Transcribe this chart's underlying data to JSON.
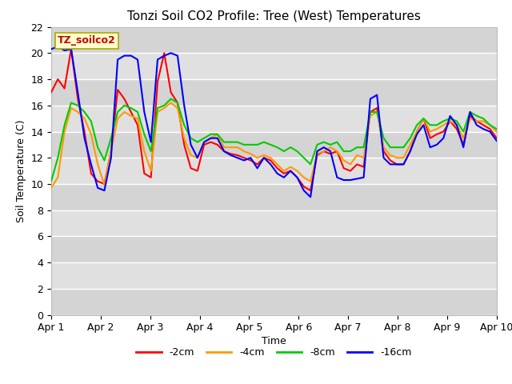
{
  "title": "Tonzi Soil CO2 Profile: Tree (West) Temperatures",
  "xlabel": "Time",
  "ylabel": "Soil Temperature (C)",
  "watermark": "TZ_soilco2",
  "xlim": [
    0,
    9
  ],
  "ylim": [
    0,
    22
  ],
  "yticks": [
    0,
    2,
    4,
    6,
    8,
    10,
    12,
    14,
    16,
    18,
    20,
    22
  ],
  "xtick_labels": [
    "Apr 1",
    "Apr 2",
    "Apr 3",
    "Apr 4",
    "Apr 5",
    "Apr 6",
    "Apr 7",
    "Apr 8",
    "Apr 9",
    "Apr 10"
  ],
  "line_colors": [
    "#ff0000",
    "#ff9900",
    "#00cc00",
    "#0000ff"
  ],
  "line_labels": [
    "-2cm",
    "-4cm",
    "-8cm",
    "-16cm"
  ],
  "band_colors": [
    "#d4d4d4",
    "#e0e0e0"
  ],
  "series": {
    "red": [
      17.0,
      18.0,
      17.3,
      20.3,
      16.5,
      14.0,
      10.8,
      10.2,
      10.0,
      12.5,
      17.2,
      16.5,
      15.5,
      14.5,
      10.8,
      10.5,
      17.8,
      20.0,
      17.0,
      16.2,
      13.0,
      11.2,
      11.0,
      13.0,
      13.2,
      13.0,
      12.5,
      12.3,
      12.2,
      12.0,
      11.8,
      11.5,
      12.0,
      11.8,
      11.2,
      10.8,
      11.0,
      10.5,
      9.8,
      9.5,
      12.2,
      12.5,
      12.3,
      12.5,
      11.2,
      11.0,
      11.5,
      11.3,
      15.5,
      15.8,
      12.5,
      11.8,
      11.5,
      11.5,
      12.5,
      14.0,
      15.0,
      13.5,
      13.8,
      14.0,
      14.8,
      14.2,
      13.0,
      15.2,
      14.8,
      14.5,
      14.2,
      13.5
    ],
    "orange": [
      9.7,
      10.5,
      14.0,
      15.8,
      15.5,
      15.0,
      13.8,
      11.5,
      9.9,
      12.5,
      15.0,
      15.5,
      15.2,
      15.0,
      12.5,
      11.0,
      15.5,
      15.8,
      16.2,
      15.8,
      13.5,
      12.2,
      12.0,
      13.2,
      13.5,
      13.8,
      12.8,
      12.8,
      12.8,
      12.5,
      12.3,
      12.0,
      12.2,
      12.0,
      11.5,
      11.0,
      11.3,
      11.0,
      10.5,
      10.2,
      12.3,
      12.5,
      12.8,
      12.5,
      11.8,
      11.5,
      12.2,
      12.0,
      15.2,
      15.5,
      12.8,
      12.2,
      12.0,
      12.0,
      13.0,
      14.0,
      15.0,
      14.0,
      14.2,
      14.5,
      14.8,
      14.5,
      13.5,
      15.0,
      14.8,
      14.8,
      14.5,
      14.0
    ],
    "green": [
      10.2,
      12.0,
      14.5,
      16.2,
      16.0,
      15.5,
      14.8,
      12.8,
      11.8,
      13.5,
      15.5,
      16.0,
      15.8,
      15.5,
      13.8,
      12.5,
      15.8,
      16.0,
      16.5,
      16.2,
      14.5,
      13.5,
      13.2,
      13.5,
      13.8,
      13.8,
      13.2,
      13.2,
      13.2,
      13.0,
      13.0,
      13.0,
      13.2,
      13.0,
      12.8,
      12.5,
      12.8,
      12.5,
      12.0,
      11.5,
      13.0,
      13.2,
      13.0,
      13.2,
      12.5,
      12.5,
      12.8,
      12.8,
      15.5,
      15.5,
      13.5,
      12.8,
      12.8,
      12.8,
      13.5,
      14.5,
      15.0,
      14.5,
      14.5,
      14.8,
      15.0,
      14.8,
      14.0,
      15.5,
      15.2,
      15.0,
      14.5,
      14.2
    ],
    "blue": [
      20.3,
      20.5,
      20.2,
      20.3,
      17.0,
      13.5,
      11.5,
      9.7,
      9.5,
      12.0,
      19.5,
      19.8,
      19.8,
      19.5,
      15.5,
      13.2,
      19.5,
      19.8,
      20.0,
      19.8,
      16.0,
      13.0,
      12.0,
      13.2,
      13.5,
      13.5,
      12.5,
      12.2,
      12.0,
      11.8,
      12.0,
      11.2,
      12.0,
      11.5,
      10.8,
      10.5,
      11.0,
      10.5,
      9.5,
      9.0,
      12.5,
      12.8,
      12.5,
      10.5,
      10.3,
      10.3,
      10.4,
      10.5,
      16.5,
      16.8,
      12.0,
      11.5,
      11.5,
      11.5,
      12.5,
      13.8,
      14.5,
      12.8,
      13.0,
      13.5,
      15.2,
      14.5,
      12.8,
      15.5,
      14.5,
      14.2,
      14.0,
      13.3
    ]
  }
}
